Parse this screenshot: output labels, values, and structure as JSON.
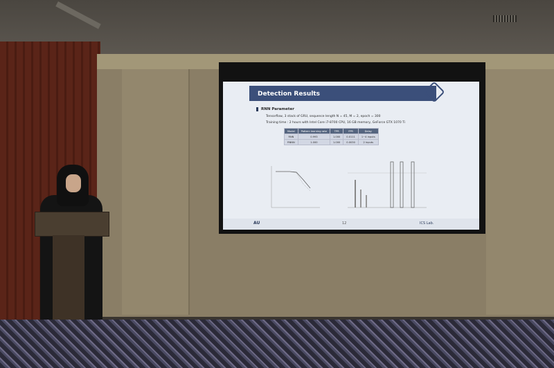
{
  "scene": "Presenter at a podium in front of a projected slide",
  "slide": {
    "title": "Detection Results",
    "section": "RNN Parameter",
    "bullets": [
      "Tensorflow, 3 stack of GRU, sequence length N = 45, M = 2, epoch = 300",
      "Training time : 2 hours with Intel Core i7-8700 CPU, 16 GB memory, GeForce GTX 1070 Ti"
    ],
    "table": {
      "headers": [
        "Model",
        "Pattern learning rate",
        "TPR",
        "FPR",
        "Delay"
      ],
      "rows": [
        [
          "RNN",
          "0.993",
          "1.000",
          "0.0111",
          "1~4 inputs"
        ],
        [
          "RNNN",
          "1.000",
          "1.000",
          "0.0030",
          "2 inputs"
        ]
      ]
    },
    "footer": {
      "left": "AU",
      "page": "12",
      "right": "ICS Lab."
    },
    "chart_colors": {
      "line": "#555555",
      "bars": "#666666"
    }
  }
}
